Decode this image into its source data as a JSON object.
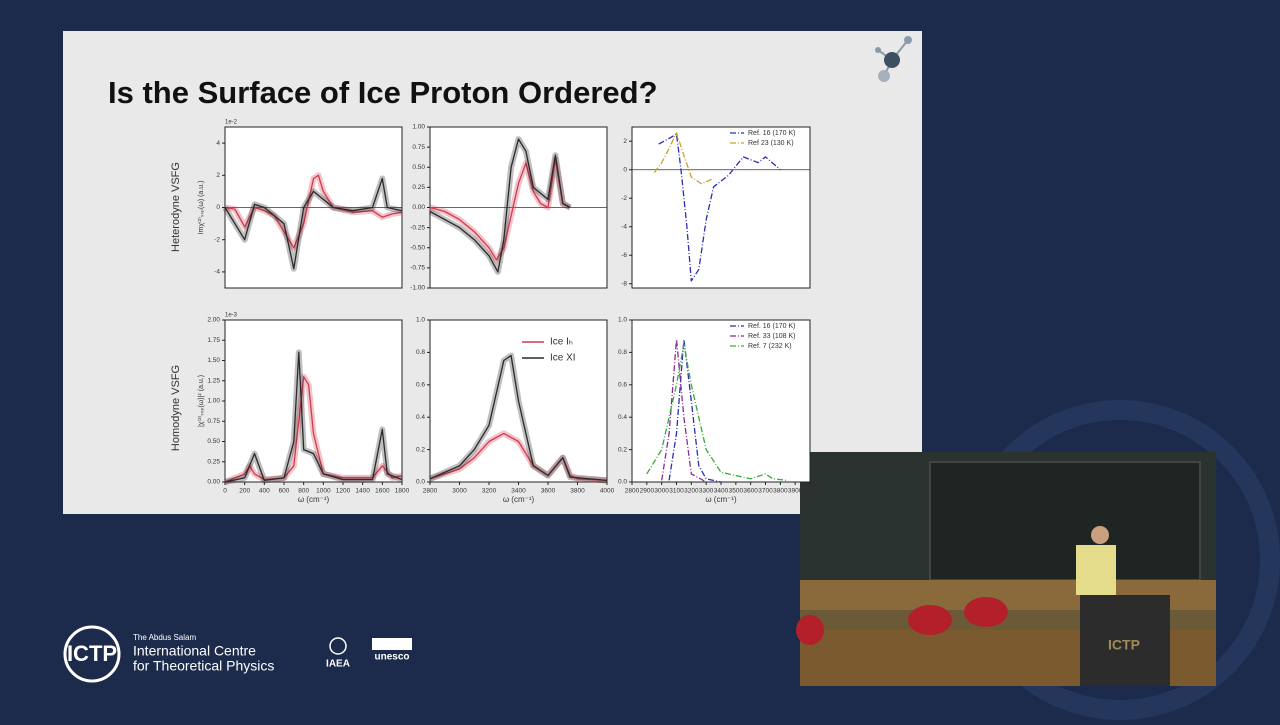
{
  "slide": {
    "title": "Is the Surface of Ice Proton Ordered?",
    "row_labels": [
      "Heterodyne VSFG",
      "Homodyne VSFG"
    ],
    "panels": [
      {
        "type": "line",
        "offset_text": "1e-2",
        "ylabel": "Imχ⁽²⁾ₛₛₚ(ω) (a.u.)",
        "xlim": [
          0,
          1800
        ],
        "ylim": [
          -5,
          5
        ],
        "yticks": [
          -4,
          -2,
          0,
          2,
          4
        ],
        "zero_line": true,
        "band": true,
        "series": [
          {
            "color": "#d03a4f",
            "x": [
              0,
              100,
              200,
              300,
              400,
              500,
              600,
              700,
              800,
              900,
              950,
              1000,
              1100,
              1300,
              1500,
              1600,
              1700,
              1800
            ],
            "values": [
              0,
              -0.1,
              -1.2,
              0,
              -0.2,
              -0.5,
              -1.5,
              -2.5,
              -1,
              1.8,
              2,
              1,
              0,
              -0.3,
              -0.2,
              -0.6,
              -0.4,
              -0.3
            ]
          },
          {
            "color": "#2a2a2a",
            "x": [
              0,
              200,
              300,
              400,
              600,
              700,
              800,
              900,
              1000,
              1100,
              1300,
              1500,
              1600,
              1650,
              1800
            ],
            "values": [
              0,
              -2,
              0.2,
              0,
              -1,
              -3.8,
              0,
              1,
              0.5,
              0,
              -0.2,
              0,
              1.8,
              0,
              -0.2
            ]
          }
        ]
      },
      {
        "type": "line",
        "xlim": [
          2800,
          4000
        ],
        "ylim": [
          -1,
          1
        ],
        "zero_line": true,
        "band": true,
        "yticks": [
          {
            "value": -1,
            "label": "-1.00"
          },
          {
            "value": -0.75,
            "label": "-0.75"
          },
          {
            "value": -0.5,
            "label": "-0.50"
          },
          {
            "value": -0.25,
            "label": "-0.25"
          },
          {
            "value": 0,
            "label": "0.00"
          },
          {
            "value": 0.25,
            "label": "0.25"
          },
          {
            "value": 0.5,
            "label": "0.50"
          },
          {
            "value": 0.75,
            "label": "0.75"
          },
          {
            "value": 1,
            "label": "1.00"
          }
        ],
        "series": [
          {
            "color": "#d03a4f",
            "x": [
              2800,
              2900,
              3000,
              3100,
              3200,
              3250,
              3300,
              3400,
              3450,
              3500,
              3550,
              3600,
              3650,
              3700,
              3750
            ],
            "values": [
              0,
              -0.05,
              -0.15,
              -0.3,
              -0.5,
              -0.65,
              -0.5,
              0.3,
              0.55,
              0.2,
              0.05,
              0,
              0.6,
              0.05,
              0
            ]
          },
          {
            "color": "#2a2a2a",
            "x": [
              2800,
              2900,
              3000,
              3100,
              3200,
              3260,
              3300,
              3350,
              3400,
              3450,
              3500,
              3600,
              3650,
              3700,
              3750
            ],
            "values": [
              -0.05,
              -0.15,
              -0.25,
              -0.4,
              -0.6,
              -0.8,
              -0.4,
              0.5,
              0.85,
              0.7,
              0.25,
              0.1,
              0.65,
              0.05,
              0
            ]
          }
        ]
      },
      {
        "type": "line",
        "xlim": [
          2800,
          4000
        ],
        "ylim": [
          -8.3,
          3
        ],
        "yticks": [
          -8,
          -6,
          -4,
          -2,
          0,
          2
        ],
        "zero_line": true,
        "legend": "upper right",
        "series": [
          {
            "name": "Ref. 16 (170 K)",
            "color": "#2b2fb0",
            "dash": "6,2,1,2",
            "x": [
              2980,
              3050,
              3100,
              3130,
              3170,
              3200,
              3250,
              3300,
              3350,
              3450,
              3550,
              3650,
              3700,
              3800
            ],
            "values": [
              1.8,
              2.2,
              2.5,
              0,
              -4,
              -7.8,
              -7,
              -3.5,
              -1.2,
              -0.4,
              0.9,
              0.5,
              0.9,
              0
            ]
          },
          {
            "name": "Ref 23 (130 K)",
            "color": "#c9a227",
            "dash": "6,2,1,2",
            "x": [
              2950,
              3000,
              3050,
              3100,
              3150,
              3200,
              3270,
              3350
            ],
            "values": [
              -0.2,
              0.5,
              1.5,
              2.6,
              1,
              -0.5,
              -1,
              -0.6
            ]
          }
        ]
      },
      {
        "type": "line",
        "offset_text": "1e-3",
        "ylabel": "|χ⁽²⁾ₛₛₚ(ω)|² (a.u.)",
        "xlabel": "ω (cm⁻¹)",
        "xlim": [
          0,
          1800
        ],
        "xticks": [
          0,
          200,
          400,
          600,
          800,
          1000,
          1200,
          1400,
          1600,
          1800
        ],
        "ylim": [
          0,
          2
        ],
        "band": true,
        "yticks": [
          {
            "value": 0,
            "label": "0.00"
          },
          {
            "value": 0.25,
            "label": "0.25"
          },
          {
            "value": 0.5,
            "label": "0.50"
          },
          {
            "value": 0.75,
            "label": "0.75"
          },
          {
            "value": 1,
            "label": "1.00"
          },
          {
            "value": 1.25,
            "label": "1.25"
          },
          {
            "value": 1.5,
            "label": "1.50"
          },
          {
            "value": 1.75,
            "label": "1.75"
          },
          {
            "value": 2,
            "label": "2.00"
          }
        ],
        "series": [
          {
            "color": "#d03a4f",
            "x": [
              0,
              200,
              250,
              300,
              400,
              600,
              700,
              800,
              850,
              900,
              1000,
              1200,
              1500,
              1600,
              1700,
              1800
            ],
            "values": [
              0,
              0.1,
              0.2,
              0.1,
              0.03,
              0.05,
              0.2,
              1.3,
              1.2,
              0.6,
              0.1,
              0.05,
              0.05,
              0.2,
              0.05,
              0.08
            ]
          },
          {
            "color": "#2a2a2a",
            "x": [
              0,
              200,
              300,
              400,
              600,
              700,
              750,
              800,
              900,
              1000,
              1200,
              1500,
              1600,
              1650,
              1800
            ],
            "values": [
              0,
              0.05,
              0.35,
              0.02,
              0.05,
              0.5,
              1.6,
              0.4,
              0.35,
              0.1,
              0.03,
              0.03,
              0.65,
              0.1,
              0.03
            ]
          }
        ]
      },
      {
        "type": "line",
        "xlabel": "ω (cm⁻¹)",
        "legend": "upper right",
        "band": true,
        "xlim": [
          2800,
          4000
        ],
        "xticks": [
          2800,
          3000,
          3200,
          3400,
          3600,
          3800,
          4000
        ],
        "ylim": [
          0,
          1
        ],
        "yticks": [
          {
            "value": 0,
            "label": "0.0"
          },
          {
            "value": 0.2,
            "label": "0.2"
          },
          {
            "value": 0.4,
            "label": "0.4"
          },
          {
            "value": 0.6,
            "label": "0.6"
          },
          {
            "value": 0.8,
            "label": "0.8"
          },
          {
            "value": 1,
            "label": "1.0"
          }
        ],
        "series": [
          {
            "name": "Ice Iₕ",
            "color": "#d03a4f",
            "x": [
              2800,
              3000,
              3100,
              3200,
              3300,
              3400,
              3500,
              3600,
              3700,
              3750,
              3800,
              4000
            ],
            "values": [
              0.02,
              0.08,
              0.15,
              0.25,
              0.3,
              0.25,
              0.1,
              0.04,
              0.15,
              0.04,
              0.02,
              0.01
            ]
          },
          {
            "name": "Ice XI",
            "color": "#2a2a2a",
            "x": [
              2800,
              3000,
              3100,
              3200,
              3300,
              3350,
              3400,
              3500,
              3600,
              3700,
              3750,
              4000
            ],
            "values": [
              0.02,
              0.1,
              0.2,
              0.35,
              0.75,
              0.78,
              0.5,
              0.1,
              0.04,
              0.15,
              0.03,
              0.01
            ]
          }
        ]
      },
      {
        "type": "line",
        "xlabel": "ω (cm⁻¹)",
        "legend": "upper right",
        "xlim": [
          2800,
          4000
        ],
        "xticks": [
          2800,
          2900,
          3000,
          3100,
          3200,
          3300,
          3400,
          3500,
          3600,
          3700,
          3800,
          3900,
          4000
        ],
        "ylim": [
          0,
          1
        ],
        "yticks": [
          {
            "value": 0,
            "label": "0.0"
          },
          {
            "value": 0.2,
            "label": "0.2"
          },
          {
            "value": 0.4,
            "label": "0.4"
          },
          {
            "value": 0.6,
            "label": "0.6"
          },
          {
            "value": 0.8,
            "label": "0.8"
          },
          {
            "value": 1,
            "label": "1.0"
          }
        ],
        "series": [
          {
            "name": "Ref. 16 (170 K)",
            "color": "#2b2fb0",
            "dash": "6,2,1,2",
            "x": [
              3050,
              3100,
              3150,
              3200,
              3250,
              3300,
              3400
            ],
            "values": [
              0.01,
              0.3,
              0.88,
              0.5,
              0.1,
              0.02,
              0
            ]
          },
          {
            "name": "Ref. 33 (108 K)",
            "color": "#8a2a9a",
            "dash": "6,2,1,2",
            "x": [
              3000,
              3050,
              3100,
              3150,
              3200,
              3300
            ],
            "values": [
              0.01,
              0.3,
              0.88,
              0.4,
              0.05,
              0
            ]
          },
          {
            "name": "Ref. 7 (232 K)",
            "color": "#3aa83a",
            "dash": "6,2,1,2",
            "x": [
              2900,
              3000,
              3100,
              3150,
              3200,
              3300,
              3400,
              3600,
              3700,
              3750,
              3850
            ],
            "values": [
              0.05,
              0.2,
              0.6,
              0.85,
              0.6,
              0.2,
              0.06,
              0.02,
              0.05,
              0.02,
              0.01
            ]
          }
        ]
      }
    ]
  },
  "footer": {
    "logo": "ICTP",
    "line1": "The Abdus Salam",
    "line2": "International Centre",
    "line3": "for Theoretical Physics",
    "partner1": "IAEA",
    "partner2": "unesco"
  },
  "video": {
    "podium_logo": "ICTP"
  }
}
